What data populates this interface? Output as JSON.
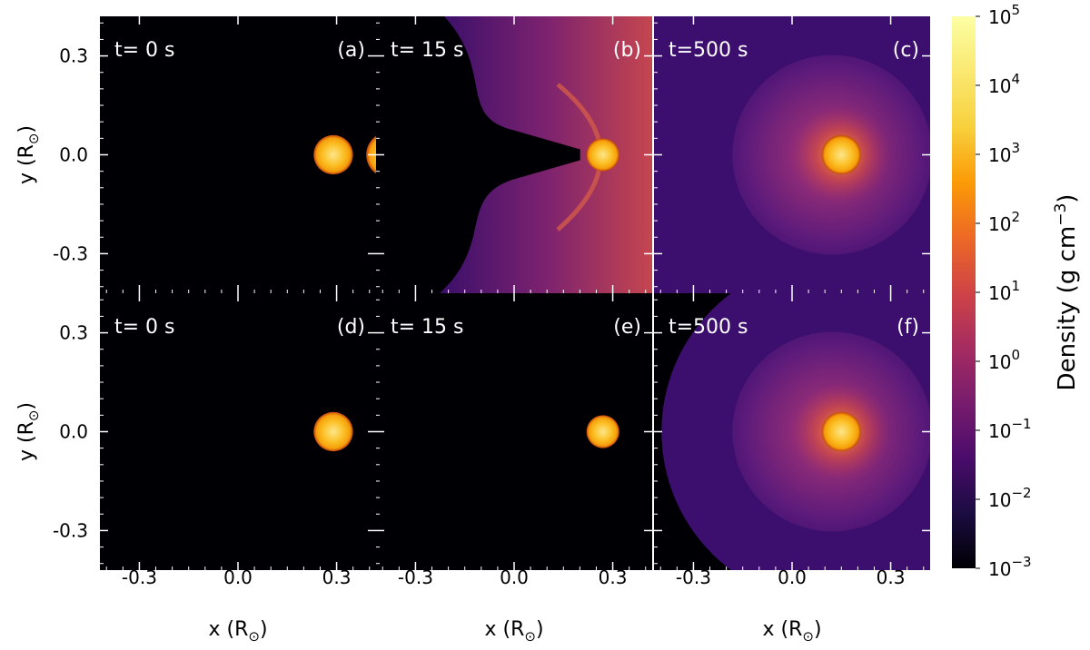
{
  "chart_data": {
    "type": "heatmap",
    "colormap": "inferno",
    "grid": false,
    "x_axis": {
      "label": "x",
      "unit": "R",
      "unit_sub": "⊙",
      "range": [
        -0.42,
        0.42
      ],
      "ticks": [
        -0.3,
        0.0,
        0.3
      ],
      "tick_labels": [
        "-0.3",
        "0.0",
        "0.3"
      ]
    },
    "y_axis": {
      "label": "y",
      "unit": "R",
      "unit_sub": "⊙",
      "range": [
        -0.42,
        0.42
      ],
      "ticks": [
        0.3,
        0.0,
        -0.3
      ],
      "tick_labels": [
        "0.3",
        "0.0",
        "-0.3"
      ]
    },
    "colorbar": {
      "title": "Density",
      "unit_base": "g cm",
      "unit_exp": "−3",
      "scale": "log",
      "range": [
        0.001,
        100000
      ],
      "ticks": [
        {
          "base": "10",
          "exp": "5",
          "value": 100000
        },
        {
          "base": "10",
          "exp": "4",
          "value": 10000
        },
        {
          "base": "10",
          "exp": "3",
          "value": 1000
        },
        {
          "base": "10",
          "exp": "2",
          "value": 100
        },
        {
          "base": "10",
          "exp": "1",
          "value": 10
        },
        {
          "base": "10",
          "exp": "0",
          "value": 1
        },
        {
          "base": "10",
          "exp": "−1",
          "value": 0.1
        },
        {
          "base": "10",
          "exp": "−2",
          "value": 0.01
        },
        {
          "base": "10",
          "exp": "−3",
          "value": 0.001
        }
      ]
    },
    "panels": [
      {
        "label": "(a)",
        "time": "t= 0 s",
        "row": 0,
        "col": 0,
        "stars": [
          {
            "x": 0.29,
            "y": 0.0,
            "r": 0.06
          },
          {
            "x": 0.46,
            "y": 0.0,
            "r": 0.07
          }
        ],
        "ejecta": "none"
      },
      {
        "label": "(b)",
        "time": "t= 15 s",
        "row": 0,
        "col": 1,
        "stars": [
          {
            "x": 0.27,
            "y": 0.0,
            "r": 0.05
          }
        ],
        "ejecta": "bow"
      },
      {
        "label": "(c)",
        "time": "t=500 s",
        "row": 0,
        "col": 2,
        "stars": [
          {
            "x": 0.15,
            "y": 0.0,
            "r": 0.06
          }
        ],
        "ejecta": "full"
      },
      {
        "label": "(d)",
        "time": "t= 0 s",
        "row": 1,
        "col": 0,
        "stars": [
          {
            "x": 0.29,
            "y": 0.0,
            "r": 0.06
          }
        ],
        "ejecta": "none"
      },
      {
        "label": "(e)",
        "time": "t= 15 s",
        "row": 1,
        "col": 1,
        "stars": [
          {
            "x": 0.27,
            "y": 0.0,
            "r": 0.05
          }
        ],
        "ejecta": "none"
      },
      {
        "label": "(f)",
        "time": "t=500 s",
        "row": 1,
        "col": 2,
        "stars": [
          {
            "x": 0.15,
            "y": 0.0,
            "r": 0.06
          }
        ],
        "ejecta": "shell"
      }
    ]
  }
}
